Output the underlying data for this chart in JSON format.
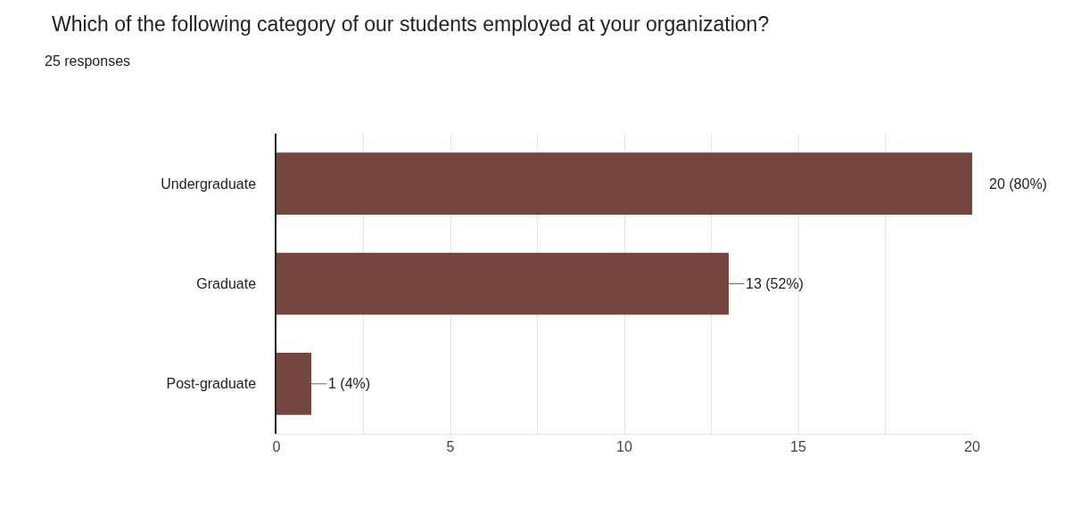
{
  "chart_data": {
    "type": "bar",
    "orientation": "horizontal",
    "title": "Which of the following category of our students employed at your organization?",
    "subtitle": "25 responses",
    "categories": [
      "Undergraduate",
      "Graduate",
      "Post-graduate"
    ],
    "values": [
      20,
      13,
      1
    ],
    "color": "#74463f",
    "value_labels": [
      "20 (80%)",
      "13 (52%)",
      "1 (4%)"
    ],
    "xlim": [
      0,
      20
    ],
    "xticks": [
      0,
      {
        "value": 2.5,
        "label": null
      },
      5,
      {
        "value": 7.5,
        "label": null
      },
      10,
      {
        "value": 12.5,
        "label": null
      },
      15,
      {
        "value": 17.5,
        "label": null
      },
      20
    ],
    "grid": "x",
    "legend": false
  }
}
